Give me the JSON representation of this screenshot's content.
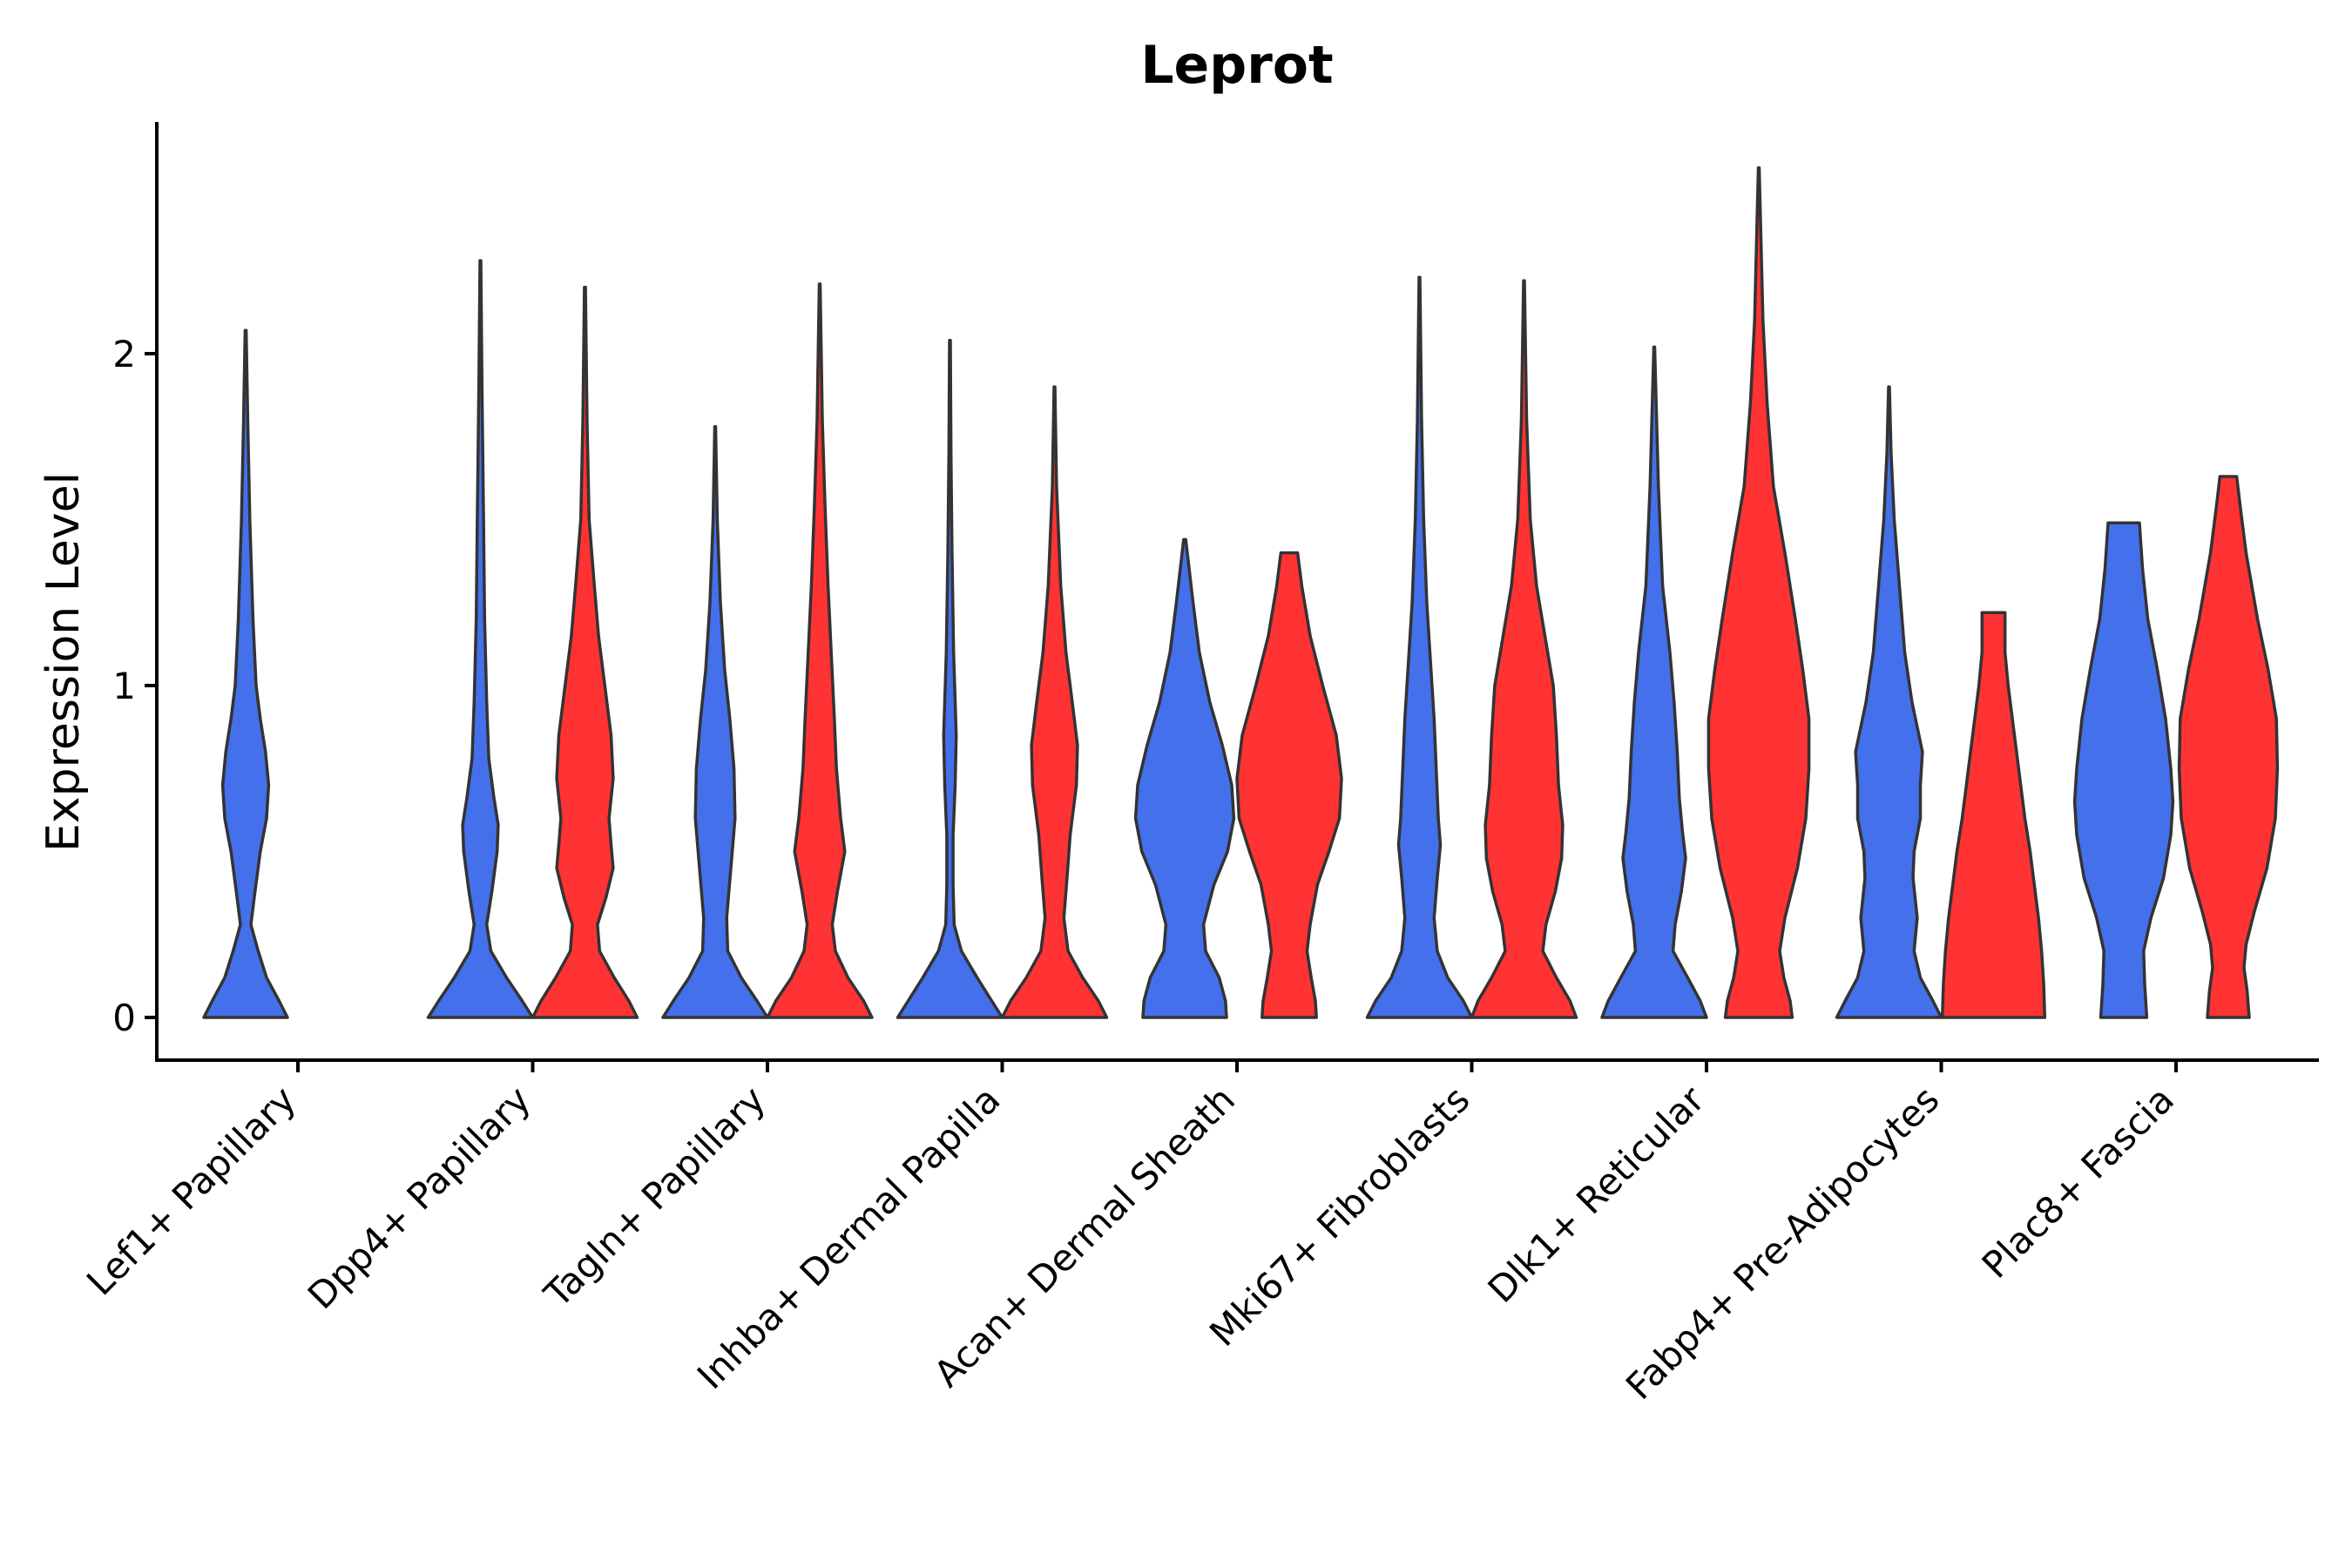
{
  "chart_data": {
    "type": "violin",
    "title": "Leprot",
    "xlabel": "",
    "ylabel": "Expression Level",
    "ylim": [
      -0.13,
      2.7
    ],
    "yticks": [
      0,
      1,
      2
    ],
    "legend": "none",
    "grid": false,
    "colors": {
      "blue": "#4470EB",
      "red": "#FF3333"
    },
    "categories": [
      "Lef1+ Papillary",
      "Dpp4+ Papillary",
      "Tagln+ Papillary",
      "Inhba+ Dermal Papilla",
      "Acan+ Dermal Sheath",
      "Mki67+ Fibroblasts",
      "Dlk1+ Reticular",
      "Fabp4+ Pre-Adipocytes",
      "Plac8+ Fascia"
    ],
    "violins": [
      {
        "category": "Lef1+ Papillary",
        "series": "blue",
        "max": 2.07,
        "profile": [
          [
            0,
            0.4
          ],
          [
            0.05,
            0.32
          ],
          [
            0.12,
            0.2
          ],
          [
            0.2,
            0.12
          ],
          [
            0.28,
            0.05
          ],
          [
            0.38,
            0.09
          ],
          [
            0.5,
            0.14
          ],
          [
            0.6,
            0.2
          ],
          [
            0.7,
            0.22
          ],
          [
            0.8,
            0.19
          ],
          [
            0.9,
            0.14
          ],
          [
            1.0,
            0.1
          ],
          [
            1.2,
            0.07
          ],
          [
            1.5,
            0.04
          ],
          [
            1.8,
            0.02
          ],
          [
            2.07,
            0.005
          ]
        ]
      },
      {
        "category": "Dpp4+ Papillary",
        "series": "blue",
        "max": 2.28,
        "profile": [
          [
            0,
            0.5
          ],
          [
            0.05,
            0.4
          ],
          [
            0.12,
            0.25
          ],
          [
            0.2,
            0.1
          ],
          [
            0.28,
            0.06
          ],
          [
            0.38,
            0.11
          ],
          [
            0.5,
            0.16
          ],
          [
            0.58,
            0.17
          ],
          [
            0.66,
            0.13
          ],
          [
            0.78,
            0.08
          ],
          [
            0.95,
            0.06
          ],
          [
            1.2,
            0.04
          ],
          [
            1.5,
            0.03
          ],
          [
            1.9,
            0.015
          ],
          [
            2.28,
            0.004
          ]
        ]
      },
      {
        "category": "Dpp4+ Papillary",
        "series": "red",
        "max": 2.2,
        "profile": [
          [
            0,
            0.5
          ],
          [
            0.05,
            0.42
          ],
          [
            0.12,
            0.28
          ],
          [
            0.2,
            0.14
          ],
          [
            0.28,
            0.12
          ],
          [
            0.36,
            0.2
          ],
          [
            0.45,
            0.27
          ],
          [
            0.52,
            0.25
          ],
          [
            0.6,
            0.23
          ],
          [
            0.72,
            0.27
          ],
          [
            0.85,
            0.25
          ],
          [
            1.0,
            0.19
          ],
          [
            1.15,
            0.13
          ],
          [
            1.3,
            0.09
          ],
          [
            1.5,
            0.04
          ],
          [
            1.8,
            0.02
          ],
          [
            2.2,
            0.005
          ]
        ]
      },
      {
        "category": "Tagln+ Papillary",
        "series": "blue",
        "max": 1.78,
        "profile": [
          [
            0,
            0.5
          ],
          [
            0.05,
            0.4
          ],
          [
            0.12,
            0.25
          ],
          [
            0.2,
            0.12
          ],
          [
            0.3,
            0.11
          ],
          [
            0.45,
            0.15
          ],
          [
            0.6,
            0.19
          ],
          [
            0.75,
            0.18
          ],
          [
            0.9,
            0.14
          ],
          [
            1.05,
            0.09
          ],
          [
            1.25,
            0.05
          ],
          [
            1.5,
            0.02
          ],
          [
            1.78,
            0.004
          ]
        ]
      },
      {
        "category": "Tagln+ Papillary",
        "series": "red",
        "max": 2.21,
        "profile": [
          [
            0,
            0.5
          ],
          [
            0.05,
            0.42
          ],
          [
            0.12,
            0.27
          ],
          [
            0.2,
            0.15
          ],
          [
            0.28,
            0.12
          ],
          [
            0.38,
            0.17
          ],
          [
            0.5,
            0.24
          ],
          [
            0.6,
            0.2
          ],
          [
            0.75,
            0.16
          ],
          [
            0.9,
            0.14
          ],
          [
            1.1,
            0.11
          ],
          [
            1.3,
            0.08
          ],
          [
            1.55,
            0.05
          ],
          [
            1.8,
            0.025
          ],
          [
            2.21,
            0.004
          ]
        ]
      },
      {
        "category": "Inhba+ Dermal Papilla",
        "series": "blue",
        "max": 2.04,
        "profile": [
          [
            0,
            0.5
          ],
          [
            0.05,
            0.4
          ],
          [
            0.12,
            0.26
          ],
          [
            0.2,
            0.11
          ],
          [
            0.28,
            0.04
          ],
          [
            0.4,
            0.03
          ],
          [
            0.55,
            0.03
          ],
          [
            0.7,
            0.05
          ],
          [
            0.85,
            0.06
          ],
          [
            0.95,
            0.05
          ],
          [
            1.1,
            0.035
          ],
          [
            1.4,
            0.02
          ],
          [
            1.7,
            0.01
          ],
          [
            2.04,
            0.004
          ]
        ]
      },
      {
        "category": "Inhba+ Dermal Papilla",
        "series": "red",
        "max": 1.9,
        "profile": [
          [
            0,
            0.5
          ],
          [
            0.05,
            0.42
          ],
          [
            0.12,
            0.27
          ],
          [
            0.2,
            0.13
          ],
          [
            0.3,
            0.09
          ],
          [
            0.42,
            0.12
          ],
          [
            0.55,
            0.15
          ],
          [
            0.7,
            0.21
          ],
          [
            0.82,
            0.22
          ],
          [
            0.95,
            0.17
          ],
          [
            1.1,
            0.11
          ],
          [
            1.3,
            0.06
          ],
          [
            1.6,
            0.02
          ],
          [
            1.9,
            0.004
          ]
        ]
      },
      {
        "category": "Acan+ Dermal Sheath",
        "series": "blue",
        "max": 1.44,
        "profile": [
          [
            0,
            0.4
          ],
          [
            0.05,
            0.39
          ],
          [
            0.12,
            0.33
          ],
          [
            0.2,
            0.2
          ],
          [
            0.28,
            0.18
          ],
          [
            0.4,
            0.28
          ],
          [
            0.5,
            0.41
          ],
          [
            0.6,
            0.47
          ],
          [
            0.7,
            0.45
          ],
          [
            0.82,
            0.36
          ],
          [
            0.95,
            0.24
          ],
          [
            1.1,
            0.14
          ],
          [
            1.25,
            0.08
          ],
          [
            1.44,
            0.01
          ]
        ]
      },
      {
        "category": "Acan+ Dermal Sheath",
        "series": "red",
        "max": 1.4,
        "profile": [
          [
            0,
            0.26
          ],
          [
            0.05,
            0.25
          ],
          [
            0.12,
            0.21
          ],
          [
            0.2,
            0.17
          ],
          [
            0.28,
            0.2
          ],
          [
            0.4,
            0.27
          ],
          [
            0.5,
            0.38
          ],
          [
            0.6,
            0.48
          ],
          [
            0.72,
            0.5
          ],
          [
            0.85,
            0.45
          ],
          [
            1.0,
            0.32
          ],
          [
            1.15,
            0.2
          ],
          [
            1.3,
            0.12
          ],
          [
            1.4,
            0.08
          ]
        ]
      },
      {
        "category": "Mki67+ Fibroblasts",
        "series": "blue",
        "max": 2.23,
        "profile": [
          [
            0,
            0.5
          ],
          [
            0.05,
            0.42
          ],
          [
            0.12,
            0.27
          ],
          [
            0.2,
            0.17
          ],
          [
            0.3,
            0.14
          ],
          [
            0.42,
            0.17
          ],
          [
            0.52,
            0.2
          ],
          [
            0.6,
            0.18
          ],
          [
            0.75,
            0.16
          ],
          [
            0.9,
            0.14
          ],
          [
            1.05,
            0.11
          ],
          [
            1.25,
            0.07
          ],
          [
            1.5,
            0.04
          ],
          [
            1.8,
            0.02
          ],
          [
            2.23,
            0.004
          ]
        ]
      },
      {
        "category": "Mki67+ Fibroblasts",
        "series": "red",
        "max": 2.22,
        "profile": [
          [
            0,
            0.5
          ],
          [
            0.05,
            0.44
          ],
          [
            0.12,
            0.31
          ],
          [
            0.2,
            0.18
          ],
          [
            0.28,
            0.21
          ],
          [
            0.38,
            0.3
          ],
          [
            0.48,
            0.36
          ],
          [
            0.58,
            0.37
          ],
          [
            0.7,
            0.33
          ],
          [
            0.85,
            0.31
          ],
          [
            1.0,
            0.28
          ],
          [
            1.15,
            0.2
          ],
          [
            1.3,
            0.12
          ],
          [
            1.5,
            0.06
          ],
          [
            1.8,
            0.025
          ],
          [
            2.22,
            0.004
          ]
        ]
      },
      {
        "category": "Dlk1+ Reticular",
        "series": "blue",
        "max": 2.02,
        "profile": [
          [
            0,
            0.5
          ],
          [
            0.05,
            0.44
          ],
          [
            0.12,
            0.32
          ],
          [
            0.2,
            0.18
          ],
          [
            0.28,
            0.2
          ],
          [
            0.38,
            0.26
          ],
          [
            0.48,
            0.3
          ],
          [
            0.56,
            0.27
          ],
          [
            0.66,
            0.24
          ],
          [
            0.8,
            0.22
          ],
          [
            0.95,
            0.19
          ],
          [
            1.1,
            0.15
          ],
          [
            1.3,
            0.08
          ],
          [
            1.6,
            0.04
          ],
          [
            2.02,
            0.004
          ]
        ]
      },
      {
        "category": "Dlk1+ Reticular",
        "series": "red",
        "max": 2.56,
        "profile": [
          [
            0,
            0.32
          ],
          [
            0.05,
            0.3
          ],
          [
            0.12,
            0.24
          ],
          [
            0.2,
            0.2
          ],
          [
            0.3,
            0.25
          ],
          [
            0.45,
            0.37
          ],
          [
            0.6,
            0.45
          ],
          [
            0.75,
            0.48
          ],
          [
            0.9,
            0.48
          ],
          [
            1.05,
            0.42
          ],
          [
            1.2,
            0.35
          ],
          [
            1.4,
            0.25
          ],
          [
            1.6,
            0.14
          ],
          [
            1.85,
            0.08
          ],
          [
            2.1,
            0.04
          ],
          [
            2.56,
            0.004
          ]
        ]
      },
      {
        "category": "Fabp4+ Pre-Adipocytes",
        "series": "blue",
        "max": 1.9,
        "profile": [
          [
            0,
            0.5
          ],
          [
            0.05,
            0.42
          ],
          [
            0.12,
            0.3
          ],
          [
            0.2,
            0.24
          ],
          [
            0.3,
            0.27
          ],
          [
            0.42,
            0.23
          ],
          [
            0.5,
            0.24
          ],
          [
            0.6,
            0.3
          ],
          [
            0.7,
            0.3
          ],
          [
            0.8,
            0.32
          ],
          [
            0.95,
            0.22
          ],
          [
            1.1,
            0.15
          ],
          [
            1.3,
            0.1
          ],
          [
            1.5,
            0.05
          ],
          [
            1.7,
            0.02
          ],
          [
            1.9,
            0.004
          ]
        ]
      },
      {
        "category": "Fabp4+ Pre-Adipocytes",
        "series": "red",
        "max": 1.22,
        "profile": [
          [
            0,
            0.49
          ],
          [
            0.1,
            0.48
          ],
          [
            0.2,
            0.46
          ],
          [
            0.3,
            0.43
          ],
          [
            0.4,
            0.39
          ],
          [
            0.5,
            0.35
          ],
          [
            0.6,
            0.3
          ],
          [
            0.7,
            0.26
          ],
          [
            0.8,
            0.22
          ],
          [
            0.9,
            0.18
          ],
          [
            1.0,
            0.14
          ],
          [
            1.1,
            0.11
          ],
          [
            1.22,
            0.11
          ]
        ]
      },
      {
        "category": "Plac8+ Fascia",
        "series": "blue",
        "max": 1.49,
        "profile": [
          [
            0,
            0.22
          ],
          [
            0.1,
            0.2
          ],
          [
            0.2,
            0.19
          ],
          [
            0.3,
            0.26
          ],
          [
            0.42,
            0.38
          ],
          [
            0.55,
            0.45
          ],
          [
            0.65,
            0.47
          ],
          [
            0.75,
            0.45
          ],
          [
            0.9,
            0.4
          ],
          [
            1.05,
            0.32
          ],
          [
            1.2,
            0.23
          ],
          [
            1.35,
            0.18
          ],
          [
            1.49,
            0.15
          ]
        ]
      },
      {
        "category": "Plac8+ Fascia",
        "series": "red",
        "max": 1.63,
        "profile": [
          [
            0,
            0.2
          ],
          [
            0.08,
            0.18
          ],
          [
            0.15,
            0.15
          ],
          [
            0.22,
            0.17
          ],
          [
            0.32,
            0.25
          ],
          [
            0.45,
            0.37
          ],
          [
            0.6,
            0.45
          ],
          [
            0.75,
            0.47
          ],
          [
            0.9,
            0.46
          ],
          [
            1.05,
            0.38
          ],
          [
            1.2,
            0.28
          ],
          [
            1.4,
            0.17
          ],
          [
            1.55,
            0.11
          ],
          [
            1.63,
            0.08
          ]
        ]
      }
    ]
  }
}
